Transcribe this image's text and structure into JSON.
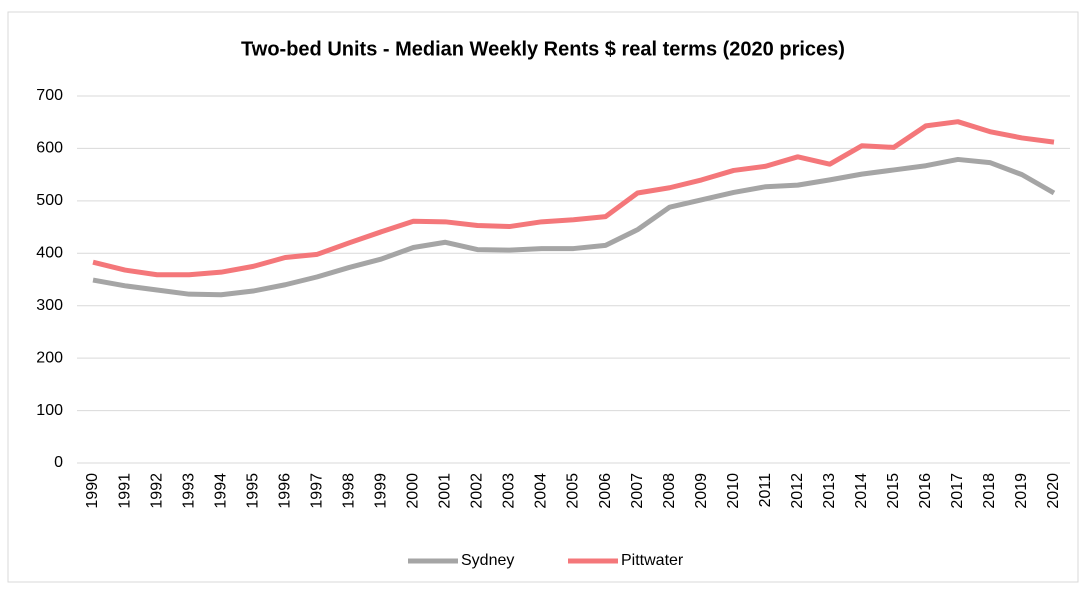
{
  "chart_data": {
    "type": "line",
    "title": "Two-bed Units - Median Weekly Rents $ real terms (2020 prices)",
    "categories": [
      "1990",
      "1991",
      "1992",
      "1993",
      "1994",
      "1995",
      "1996",
      "1997",
      "1998",
      "1999",
      "2000",
      "2001",
      "2002",
      "2003",
      "2004",
      "2005",
      "2006",
      "2007",
      "2008",
      "2009",
      "2010",
      "2011",
      "2012",
      "2013",
      "2014",
      "2015",
      "2016",
      "2017",
      "2018",
      "2019",
      "2020"
    ],
    "series": [
      {
        "name": "Sydney",
        "color": "#a5a5a5",
        "values": [
          349,
          338,
          330,
          322,
          321,
          328,
          340,
          355,
          373,
          389,
          411,
          421,
          407,
          406,
          409,
          409,
          415,
          445,
          488,
          502,
          516,
          527,
          530,
          540,
          551,
          559,
          567,
          579,
          573,
          550,
          515
        ]
      },
      {
        "name": "Pittwater",
        "color": "#f4777a",
        "values": [
          383,
          368,
          359,
          359,
          364,
          375,
          392,
          398,
          420,
          441,
          461,
          460,
          453,
          451,
          460,
          464,
          470,
          515,
          525,
          540,
          558,
          566,
          584,
          570,
          605,
          602,
          643,
          651,
          632,
          620,
          612
        ]
      }
    ],
    "ylim": [
      0,
      700
    ],
    "yticks": [
      0,
      100,
      200,
      300,
      400,
      500,
      600,
      700
    ],
    "grid": true,
    "legend": "bottom"
  }
}
